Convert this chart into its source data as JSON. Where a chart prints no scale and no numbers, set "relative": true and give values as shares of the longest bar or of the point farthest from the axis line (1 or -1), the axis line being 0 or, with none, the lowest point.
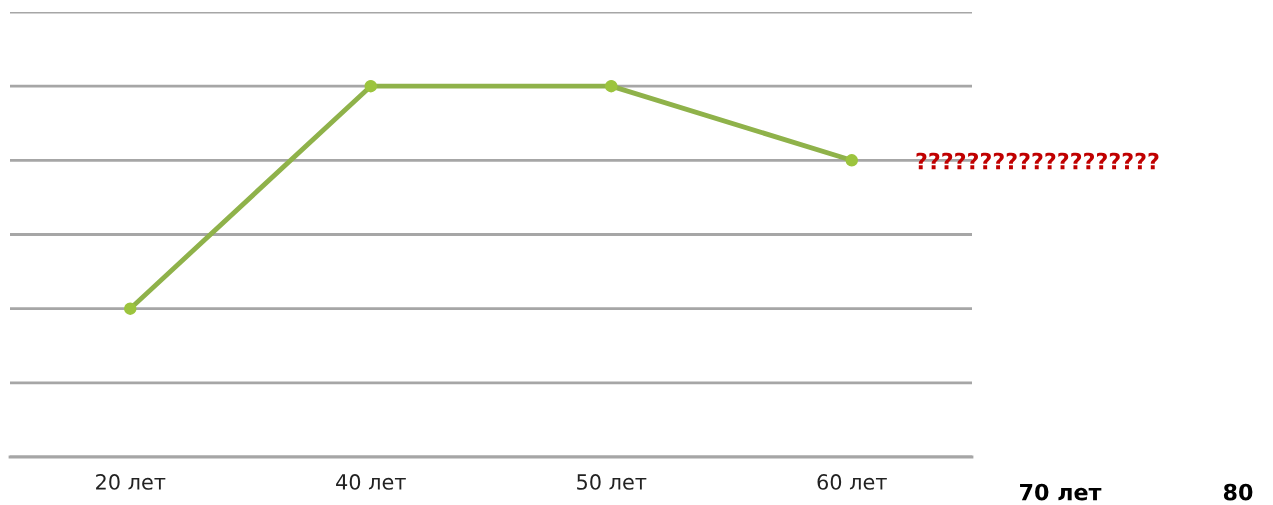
{
  "chart_data": {
    "type": "line",
    "categories": [
      "20 лет",
      "40 лет",
      "50 лет",
      "60 лет"
    ],
    "relative": true,
    "series": [
      {
        "color": "#8fb24a",
        "values": [
          0.4,
          1,
          1,
          0.8
        ]
      }
    ],
    "marker": "circle",
    "line_style": "solid",
    "grid": "y",
    "legend": false,
    "annotations": [
      "???????????????????",
      "70 лет",
      "80"
    ]
  }
}
